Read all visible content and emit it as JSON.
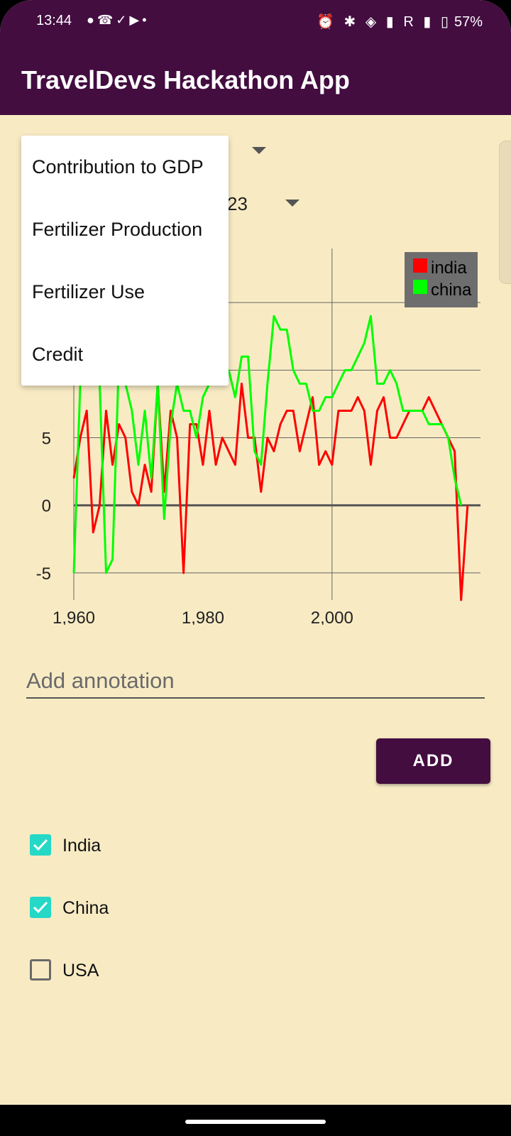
{
  "status_bar": {
    "time": "13:44",
    "notification_icons": [
      "chat-bubble",
      "whatsapp",
      "check-circle",
      "youtube",
      "dot"
    ],
    "battery": "57%",
    "right_text": "R"
  },
  "app": {
    "title": "TravelDevs Hackathon App",
    "bar_color": "#430d40",
    "background": "#f8ebc4"
  },
  "spinners": {
    "second_partial": "23"
  },
  "dropdown": {
    "items": [
      "Contribution to GDP",
      "Fertilizer Production",
      "Fertilizer Use",
      "Credit"
    ]
  },
  "chart_data": {
    "type": "line",
    "x_ticks": [
      "1,960",
      "1,980",
      "2,000"
    ],
    "y_ticks": [
      "5",
      "0",
      "-5"
    ],
    "xlim": [
      1960,
      2023
    ],
    "ylim": [
      -7,
      19
    ],
    "legend_position": "top-right",
    "series": [
      {
        "name": "india",
        "color": "#ff0000",
        "x": [
          1960,
          1961,
          1962,
          1963,
          1964,
          1965,
          1966,
          1967,
          1968,
          1969,
          1970,
          1971,
          1972,
          1973,
          1974,
          1975,
          1976,
          1977,
          1978,
          1979,
          1980,
          1981,
          1982,
          1983,
          1984,
          1985,
          1986,
          1987,
          1988,
          1989,
          1990,
          1991,
          1992,
          1993,
          1994,
          1995,
          1996,
          1997,
          1998,
          1999,
          2000,
          2001,
          2002,
          2003,
          2004,
          2005,
          2006,
          2007,
          2008,
          2009,
          2010,
          2011,
          2012,
          2013,
          2014,
          2015,
          2016,
          2017,
          2018,
          2019,
          2020,
          2021
        ],
        "values": [
          2,
          5,
          7,
          -2,
          0,
          7,
          3,
          6,
          5,
          1,
          0,
          3,
          1,
          9,
          1,
          7,
          5,
          -5,
          6,
          6,
          3,
          7,
          3,
          5,
          4,
          3,
          9,
          5,
          5,
          1,
          5,
          4,
          6,
          7,
          7,
          4,
          6,
          8,
          3,
          4,
          3,
          7,
          7,
          7,
          8,
          7,
          3,
          7,
          8,
          5,
          5,
          6,
          7,
          7,
          7,
          8,
          7,
          6,
          5,
          4,
          -7,
          0
        ]
      },
      {
        "name": "china",
        "color": "#00ff00",
        "x": [
          1960,
          1961,
          1962,
          1963,
          1964,
          1965,
          1966,
          1967,
          1968,
          1969,
          1970,
          1971,
          1972,
          1973,
          1974,
          1975,
          1976,
          1977,
          1978,
          1979,
          1980,
          1981,
          1982,
          1983,
          1984,
          1985,
          1986,
          1987,
          1988,
          1989,
          1990,
          1991,
          1992,
          1993,
          1994,
          1995,
          1996,
          1997,
          1998,
          1999,
          2000,
          2001,
          2002,
          2003,
          2004,
          2005,
          2006,
          2007,
          2008,
          2009,
          2010,
          2011,
          2012,
          2013,
          2014,
          2015,
          2016,
          2017,
          2018,
          2019,
          2020,
          2021
        ],
        "values": [
          -5,
          9,
          10,
          12,
          9,
          -5,
          -4,
          11,
          9,
          7,
          3,
          7,
          2,
          9,
          -1,
          6,
          9,
          7,
          7,
          5,
          8,
          9,
          10,
          9,
          10,
          8,
          11,
          11,
          4,
          3,
          9,
          14,
          13,
          13,
          10,
          9,
          9,
          7,
          7,
          8,
          8,
          9,
          10,
          10,
          11,
          12,
          14,
          9,
          9,
          10,
          9,
          7,
          7,
          7,
          7,
          6,
          6,
          6,
          5,
          2,
          0,
          null
        ]
      }
    ]
  },
  "annotation": {
    "placeholder": "Add annotation"
  },
  "add_button": {
    "label": "ADD"
  },
  "countries": [
    {
      "label": "India",
      "checked": true
    },
    {
      "label": "China",
      "checked": true
    },
    {
      "label": "USA",
      "checked": false
    }
  ]
}
